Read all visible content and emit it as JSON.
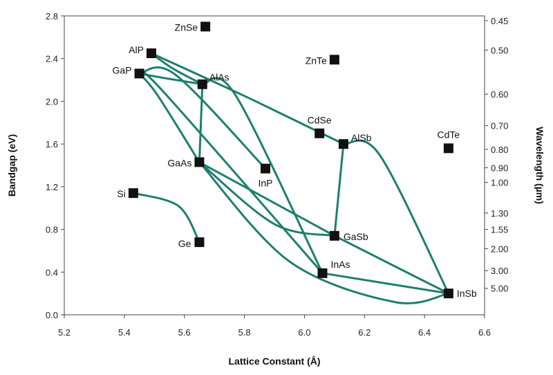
{
  "chart_data": {
    "type": "scatter",
    "xlabel": "Lattice Constant (Å)",
    "ylabel": "Bandgap (eV)",
    "y2label": "Wavelength (µm)",
    "xlim": [
      5.2,
      6.6
    ],
    "ylim": [
      0.0,
      2.8
    ],
    "x_ticks": [
      "5.2",
      "5.4",
      "5.6",
      "5.8",
      "6.0",
      "6.2",
      "6.4",
      "6.6"
    ],
    "y_ticks": [
      "0.0",
      "0.4",
      "0.8",
      "1.2",
      "1.6",
      "2.0",
      "2.4",
      "2.8"
    ],
    "y2_ticks": [
      "0.45",
      "0.50",
      "0.60",
      "0.70",
      "0.80",
      "0.90",
      "1.00",
      "1.30",
      "1.55",
      "2.00",
      "3.00",
      "5.00"
    ],
    "grid": false,
    "marker_color": "#111111",
    "curve_color": "#1d7f6e",
    "points": [
      {
        "label": "ZnSe",
        "x": 5.67,
        "y": 2.7
      },
      {
        "label": "AlP",
        "x": 5.49,
        "y": 2.45
      },
      {
        "label": "ZnTe",
        "x": 6.1,
        "y": 2.39
      },
      {
        "label": "GaP",
        "x": 5.45,
        "y": 2.26
      },
      {
        "label": "AlAs",
        "x": 5.66,
        "y": 2.16
      },
      {
        "label": "CdSe",
        "x": 6.05,
        "y": 1.7
      },
      {
        "label": "AlSb",
        "x": 6.13,
        "y": 1.6
      },
      {
        "label": "CdTe",
        "x": 6.48,
        "y": 1.56
      },
      {
        "label": "GaAs",
        "x": 5.65,
        "y": 1.43
      },
      {
        "label": "InP",
        "x": 5.87,
        "y": 1.37
      },
      {
        "label": "Si",
        "x": 5.43,
        "y": 1.14
      },
      {
        "label": "GaSb",
        "x": 6.1,
        "y": 0.74
      },
      {
        "label": "Ge",
        "x": 5.65,
        "y": 0.68
      },
      {
        "label": "InAs",
        "x": 6.06,
        "y": 0.39
      },
      {
        "label": "InSb",
        "x": 6.48,
        "y": 0.2
      }
    ],
    "curves": [
      {
        "points": [
          [
            5.49,
            2.45
          ],
          [
            5.56,
            2.31
          ],
          [
            5.66,
            2.16
          ]
        ]
      },
      {
        "points": [
          [
            5.49,
            2.45
          ],
          [
            5.8,
            2.05
          ],
          [
            6.13,
            1.6
          ]
        ]
      },
      {
        "points": [
          [
            5.45,
            2.26
          ],
          [
            5.55,
            2.21
          ],
          [
            5.66,
            2.16
          ]
        ]
      },
      {
        "points": [
          [
            5.66,
            2.16
          ],
          [
            5.65,
            1.43
          ]
        ]
      },
      {
        "points": [
          [
            5.66,
            2.16
          ],
          [
            5.77,
            2.06
          ],
          [
            6.06,
            0.39
          ]
        ]
      },
      {
        "points": [
          [
            5.45,
            2.26
          ],
          [
            5.57,
            2.25
          ],
          [
            5.87,
            1.37
          ]
        ]
      },
      {
        "points": [
          [
            5.45,
            2.26
          ],
          [
            5.51,
            2.06
          ],
          [
            5.65,
            1.43
          ]
        ]
      },
      {
        "points": [
          [
            5.45,
            2.26
          ],
          [
            5.53,
            2.09
          ],
          [
            6.06,
            0.39
          ]
        ]
      },
      {
        "points": [
          [
            5.65,
            1.43
          ],
          [
            6.1,
            0.74
          ]
        ]
      },
      {
        "points": [
          [
            5.65,
            1.43
          ],
          [
            5.9,
            0.85
          ],
          [
            6.1,
            0.74
          ]
        ]
      },
      {
        "points": [
          [
            6.13,
            1.6
          ],
          [
            6.1,
            0.74
          ]
        ]
      },
      {
        "points": [
          [
            6.13,
            1.6
          ],
          [
            6.25,
            1.5
          ],
          [
            6.48,
            0.2
          ]
        ]
      },
      {
        "points": [
          [
            6.1,
            0.74
          ],
          [
            6.48,
            0.2
          ]
        ]
      },
      {
        "points": [
          [
            6.06,
            0.39
          ],
          [
            6.48,
            0.2
          ]
        ]
      },
      {
        "points": [
          [
            5.65,
            1.43
          ],
          [
            5.95,
            0.5
          ],
          [
            6.3,
            0.12
          ],
          [
            6.48,
            0.2
          ]
        ]
      },
      {
        "points": [
          [
            5.43,
            1.14
          ],
          [
            5.58,
            1.02
          ],
          [
            5.65,
            0.68
          ]
        ]
      }
    ]
  }
}
